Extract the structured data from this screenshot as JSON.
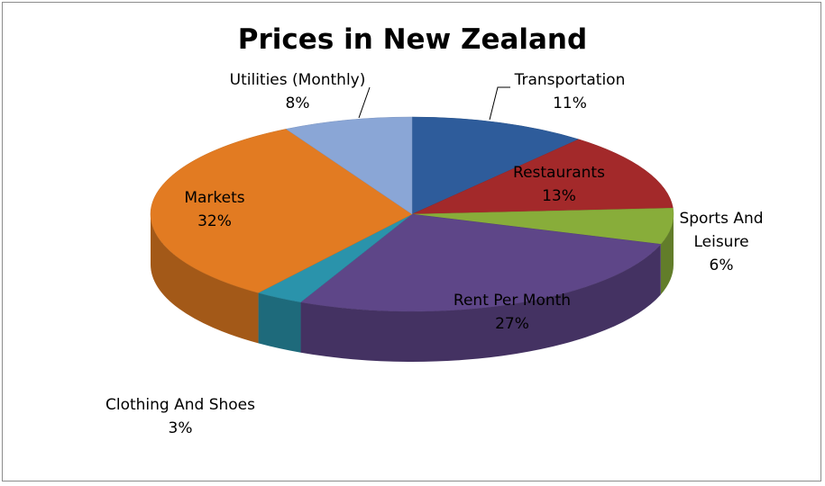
{
  "chart_data": {
    "type": "pie3d",
    "title": "Prices in New Zealand",
    "categories": [
      "Transportation",
      "Restaurants",
      "Sports And Leisure",
      "Rent Per Month",
      "Clothing And Shoes",
      "Markets",
      "Utilities (Monthly)"
    ],
    "values": [
      11,
      13,
      6,
      27,
      3,
      32,
      8
    ],
    "value_labels": [
      "11%",
      "13%",
      "6%",
      "27%",
      "3%",
      "32%",
      "8%"
    ],
    "colors": [
      "#2e5c9b",
      "#a3292a",
      "#88ad3a",
      "#5e4688",
      "#2a93ab",
      "#e27b22",
      "#8aa6d6"
    ]
  }
}
